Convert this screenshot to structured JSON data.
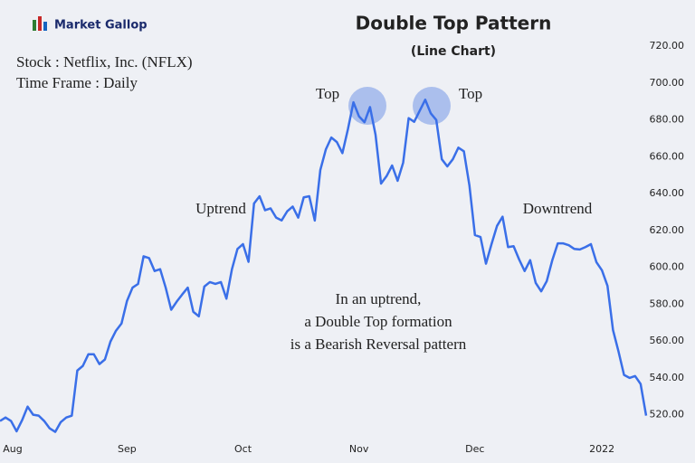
{
  "brand": "Market Gallop",
  "info": [
    "Stock : Netflix, Inc. (NFLX)",
    "Time Frame : Daily"
  ],
  "chart_data": {
    "type": "line",
    "title": "Double Top Pattern",
    "subtitle": "(Line Chart)",
    "annotations": [
      "Top",
      "Top",
      "Uptrend",
      "Downtrend"
    ],
    "note": [
      "In an uptrend,",
      "a Double Top formation",
      "is a Bearish Reversal pattern"
    ],
    "categories": [
      null,
      null,
      "Aug",
      null,
      null,
      null,
      null,
      null,
      null,
      null,
      null,
      null,
      null,
      null,
      null,
      null,
      null,
      null,
      null,
      null,
      null,
      null,
      null,
      "Sep",
      null,
      null,
      null,
      null,
      null,
      null,
      null,
      null,
      null,
      null,
      null,
      null,
      null,
      null,
      null,
      null,
      null,
      null,
      null,
      null,
      "Oct",
      null,
      null,
      null,
      null,
      null,
      null,
      null,
      null,
      null,
      null,
      null,
      null,
      null,
      null,
      null,
      null,
      null,
      null,
      null,
      null,
      "Nov",
      null,
      null,
      null,
      null,
      null,
      null,
      null,
      null,
      null,
      null,
      null,
      null,
      null,
      null,
      null,
      null,
      null,
      null,
      null,
      null,
      "Dec",
      null,
      null,
      null,
      null,
      null,
      null,
      null,
      null,
      null,
      null,
      null,
      null,
      null,
      null,
      null,
      null,
      null,
      null,
      null,
      null,
      null,
      null,
      "2022",
      null,
      null,
      null,
      null,
      null,
      null,
      null,
      null
    ],
    "series": [
      {
        "name": "NFLX",
        "color": "#3a6fe8",
        "values": [
          516.6,
          518.5,
          516.6,
          511,
          517,
          524.4,
          520,
          519.5,
          516.6,
          512.6,
          510.7,
          516,
          518.5,
          519.5,
          544,
          546.5,
          552.8,
          552.8,
          547.5,
          550,
          559.7,
          565.6,
          569.5,
          581.8,
          589,
          591,
          606,
          605,
          598,
          599,
          589,
          577,
          581.4,
          585.3,
          589,
          575.9,
          573.4,
          589.6,
          592,
          591,
          592,
          583,
          599,
          610,
          612.6,
          603,
          634.7,
          638.6,
          631,
          632,
          627,
          625.5,
          630.4,
          633,
          627,
          638,
          638.6,
          625.4,
          652.8,
          664,
          670.5,
          668,
          662,
          675,
          689.6,
          682,
          678.8,
          687,
          672,
          645.5,
          649.5,
          655.3,
          647,
          656.8,
          681,
          679,
          685,
          691,
          683.6,
          680,
          658.7,
          654.8,
          658.7,
          665,
          663,
          644.5,
          617.5,
          616.5,
          602,
          612.6,
          622.5,
          627.5,
          611,
          611.5,
          604.3,
          598,
          603.9,
          591.6,
          587,
          592.5,
          603.8,
          613,
          613,
          612,
          610,
          609.7,
          611,
          612.6,
          602.8,
          598.4,
          590,
          566,
          554.3,
          541.6,
          540,
          541,
          536.7,
          519.5
        ]
      }
    ],
    "ylim": [
      510,
      725
    ],
    "yticks": [
      {
        "value": 520,
        "label": "520.00"
      },
      {
        "value": 540,
        "label": "540.00"
      },
      {
        "value": 560,
        "label": "560.00"
      },
      {
        "value": 580,
        "label": "580.00"
      },
      {
        "value": 600,
        "label": "600.00"
      },
      {
        "value": 620,
        "label": "620.00"
      },
      {
        "value": 640,
        "label": "640.00"
      },
      {
        "value": 660,
        "label": "660.00"
      },
      {
        "value": 680,
        "label": "680.00"
      },
      {
        "value": 700,
        "label": "700.00"
      },
      {
        "value": 720,
        "label": "720.00"
      }
    ],
    "grid": false
  }
}
